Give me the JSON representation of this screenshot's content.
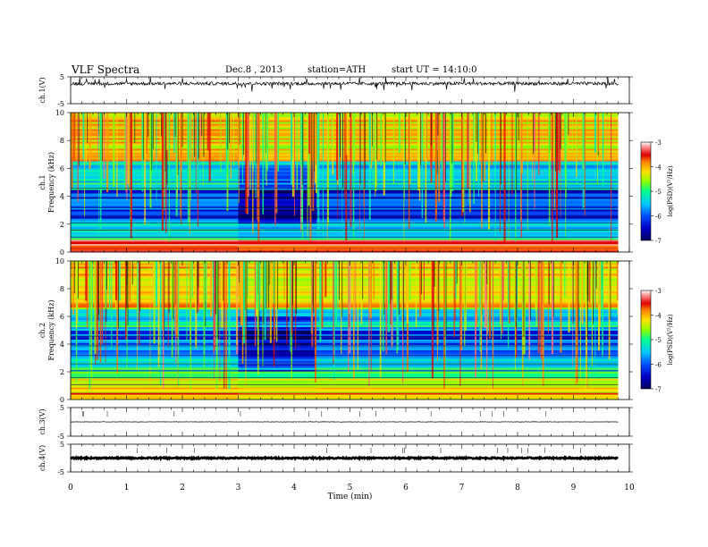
{
  "header": {
    "title": "VLF  Spectra",
    "date": "Dec.8 , 2013",
    "station": "station=ATH",
    "start": "start  UT =  14:10:0"
  },
  "colors": {
    "background": "#ffffff",
    "spectrogram_scale": [
      "#00005a",
      "#0000c8",
      "#0050ff",
      "#00c8ff",
      "#00ff90",
      "#90ff00",
      "#ffe000",
      "#ff8000",
      "#e00000",
      "#ff9090",
      "#ffffff"
    ]
  },
  "chart_data": [
    {
      "type": "line",
      "panel": "ch1-waveform",
      "ylabel": "ch.1(V)",
      "ylim": [
        -5,
        5
      ],
      "y_tick_labels": [
        "5",
        "-5"
      ],
      "description_of_values": "noisy waveform centred near 2.5 V",
      "mean_level": 2.5,
      "x_range": [
        0,
        9.8
      ]
    },
    {
      "type": "heatmap",
      "panel": "ch1-spectrogram",
      "ylabel": "ch.1\nFrequency  (kHz)",
      "ylim": [
        0,
        10
      ],
      "y_tick_labels": [
        "0",
        "2",
        "4",
        "6",
        "8",
        "10"
      ],
      "x_range": [
        0,
        9.8
      ],
      "colorbar": {
        "label": "log(PSD)(V²/Hz)",
        "range": [
          -7,
          -3
        ],
        "tick_labels": [
          "-3",
          "-4",
          "-5",
          "-6",
          "-7"
        ]
      },
      "bands_khz": [
        {
          "from": 0.0,
          "to": 0.5,
          "level": -4.0
        },
        {
          "from": 0.5,
          "to": 0.9,
          "level": -3.2
        },
        {
          "from": 0.9,
          "to": 2.5,
          "level": -5.6
        },
        {
          "from": 2.5,
          "to": 4.5,
          "level": -6.3
        },
        {
          "from": 4.5,
          "to": 6.5,
          "level": -5.6
        },
        {
          "from": 6.5,
          "to": 10.0,
          "level": -4.5
        }
      ],
      "quiet_interval_min": [
        3.0,
        4.4
      ]
    },
    {
      "type": "heatmap",
      "panel": "ch2-spectrogram",
      "ylabel": "ch.2\nFrequency  (kHz)",
      "ylim": [
        0,
        10
      ],
      "y_tick_labels": [
        "0",
        "2",
        "4",
        "6",
        "8",
        "10"
      ],
      "x_range": [
        0,
        9.8
      ],
      "colorbar": {
        "label": "log(PSD)(V²/Hz)",
        "range": [
          -7,
          -3
        ],
        "tick_labels": [
          "-3",
          "-4",
          "-5",
          "-6",
          "-7"
        ]
      },
      "bands_khz": [
        {
          "from": 0.0,
          "to": 0.5,
          "level": -4.2
        },
        {
          "from": 0.5,
          "to": 1.5,
          "level": -4.6
        },
        {
          "from": 1.5,
          "to": 3.0,
          "level": -5.4
        },
        {
          "from": 3.0,
          "to": 5.0,
          "level": -6.2
        },
        {
          "from": 5.0,
          "to": 6.5,
          "level": -5.6
        },
        {
          "from": 6.5,
          "to": 10.0,
          "level": -4.5
        }
      ],
      "quiet_interval_min": [
        3.0,
        4.4
      ]
    },
    {
      "type": "line",
      "panel": "ch3-waveform",
      "ylabel": "ch.3(V)",
      "ylim": [
        -5,
        5
      ],
      "y_tick_labels": [
        "5",
        "-5"
      ],
      "mean_level": 0.0,
      "x_range": [
        0,
        9.8
      ]
    },
    {
      "type": "line",
      "panel": "ch4-waveform",
      "ylabel": "ch.4(V)",
      "ylim": [
        -5,
        5
      ],
      "y_tick_labels": [
        "5",
        "-5"
      ],
      "mean_level": 0.0,
      "x_range": [
        0,
        9.8
      ]
    }
  ],
  "x_axis": {
    "label": "Time  (min)",
    "range": [
      0,
      10
    ],
    "tick_labels": [
      "0",
      "1",
      "2",
      "3",
      "4",
      "5",
      "6",
      "7",
      "8",
      "9",
      "10"
    ]
  }
}
